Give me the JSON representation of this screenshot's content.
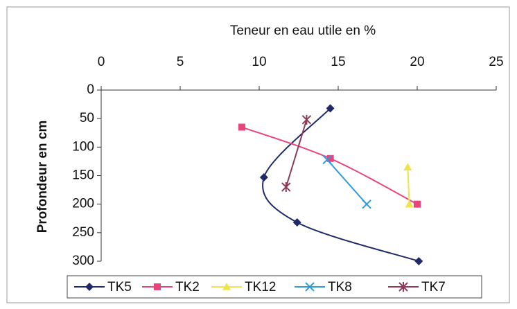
{
  "chart_data": {
    "type": "line",
    "title": "Teneur en eau utile en %",
    "y_label": "Profondeur en cm",
    "xlim": [
      0,
      25
    ],
    "xticks": [
      0,
      5,
      10,
      15,
      20,
      25
    ],
    "ylim": [
      0,
      300
    ],
    "yticks": [
      0,
      50,
      100,
      150,
      200,
      250,
      300
    ],
    "y_inverted": true,
    "x_axis_position": "top",
    "smooth": true,
    "legend": "bottom",
    "series": [
      {
        "name": "TK5",
        "color": "#1f2a6b",
        "marker": "diamond",
        "x": [
          14.5,
          10.3,
          12.4,
          20.1
        ],
        "values": [
          32,
          153,
          232,
          300
        ]
      },
      {
        "name": "TK2",
        "color": "#e8457f",
        "marker": "square",
        "x": [
          8.9,
          14.5,
          20
        ],
        "values": [
          65,
          120,
          200
        ]
      },
      {
        "name": "TK12",
        "color": "#efe44a",
        "marker": "triangle",
        "x": [
          19.4,
          19.5
        ],
        "values": [
          135,
          200
        ]
      },
      {
        "name": "TK8",
        "color": "#2e9be0",
        "marker": "cross",
        "x": [
          14.3,
          16.8
        ],
        "values": [
          122,
          200
        ]
      },
      {
        "name": "TK7",
        "color": "#8b3a5a",
        "marker": "star",
        "x": [
          13,
          11.7
        ],
        "values": [
          52,
          170
        ]
      }
    ]
  }
}
